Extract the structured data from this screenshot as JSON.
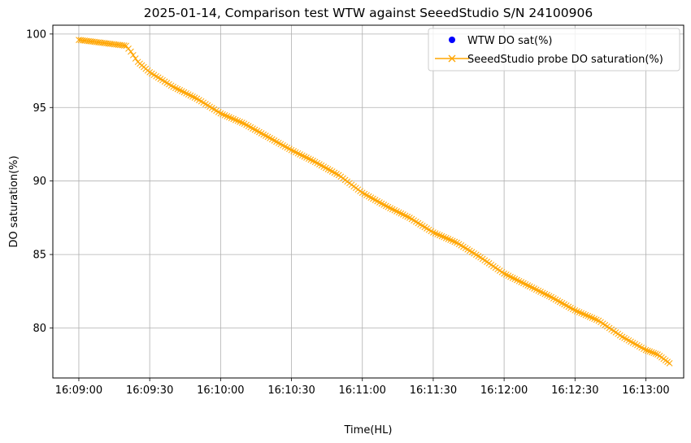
{
  "chart_data": {
    "type": "line",
    "title": "2025-01-14, Comparison test WTW against SeeedStudio S/N 24100906",
    "xlabel": "Time(HL)",
    "ylabel": "DO saturation(%)",
    "x_tick_labels": [
      "16:09:00",
      "16:09:30",
      "16:10:00",
      "16:10:30",
      "16:11:00",
      "16:11:30",
      "16:12:00",
      "16:12:30",
      "16:13:00"
    ],
    "x_tick_seconds": [
      0,
      30,
      60,
      90,
      120,
      150,
      180,
      210,
      240
    ],
    "y_ticks": [
      80,
      85,
      90,
      95,
      100
    ],
    "xlim": [
      "16:08:49",
      "16:13:16"
    ],
    "ylim": [
      76.6,
      100.6
    ],
    "grid": true,
    "legend_position": "top-right",
    "series": [
      {
        "name": "WTW DO sat(%)",
        "kind": "scatter",
        "marker": "circle",
        "color": "#0000ff",
        "points": []
      },
      {
        "name": "SeeedStudio probe DO saturation(%)",
        "kind": "line",
        "marker": "x",
        "color": "#ffa500",
        "points": [
          {
            "x": "16:09:00",
            "y": 99.6
          },
          {
            "x": "16:09:05",
            "y": 99.5
          },
          {
            "x": "16:09:10",
            "y": 99.4
          },
          {
            "x": "16:09:15",
            "y": 99.3
          },
          {
            "x": "16:09:20",
            "y": 99.2
          },
          {
            "x": "16:09:22",
            "y": 98.8
          },
          {
            "x": "16:09:25",
            "y": 98.1
          },
          {
            "x": "16:09:30",
            "y": 97.4
          },
          {
            "x": "16:09:40",
            "y": 96.4
          },
          {
            "x": "16:09:50",
            "y": 95.6
          },
          {
            "x": "16:10:00",
            "y": 94.6
          },
          {
            "x": "16:10:10",
            "y": 93.9
          },
          {
            "x": "16:10:20",
            "y": 93.0
          },
          {
            "x": "16:10:30",
            "y": 92.1
          },
          {
            "x": "16:10:40",
            "y": 91.3
          },
          {
            "x": "16:10:50",
            "y": 90.4
          },
          {
            "x": "16:11:00",
            "y": 89.2
          },
          {
            "x": "16:11:10",
            "y": 88.3
          },
          {
            "x": "16:11:20",
            "y": 87.5
          },
          {
            "x": "16:11:30",
            "y": 86.5
          },
          {
            "x": "16:11:40",
            "y": 85.8
          },
          {
            "x": "16:11:50",
            "y": 84.8
          },
          {
            "x": "16:12:00",
            "y": 83.7
          },
          {
            "x": "16:12:10",
            "y": 82.9
          },
          {
            "x": "16:12:20",
            "y": 82.1
          },
          {
            "x": "16:12:30",
            "y": 81.2
          },
          {
            "x": "16:12:40",
            "y": 80.5
          },
          {
            "x": "16:12:50",
            "y": 79.4
          },
          {
            "x": "16:13:00",
            "y": 78.5
          },
          {
            "x": "16:13:05",
            "y": 78.2
          },
          {
            "x": "16:13:10",
            "y": 77.6
          }
        ]
      }
    ]
  }
}
